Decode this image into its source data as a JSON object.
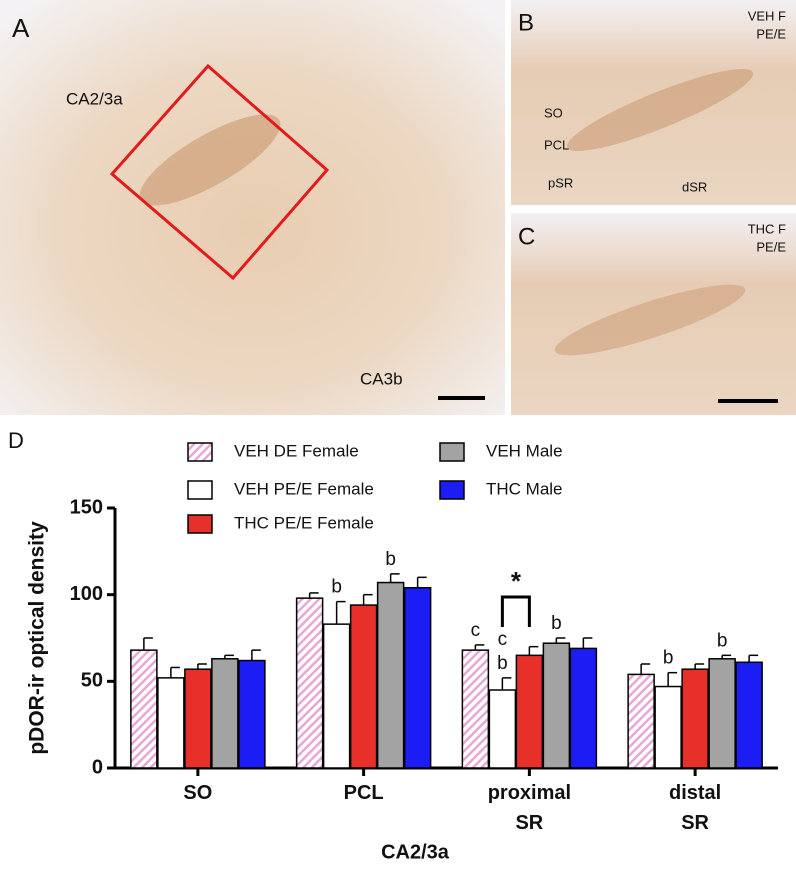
{
  "micrographs": {
    "A": {
      "letter": "A",
      "labels": [
        "CA2/3a",
        "CA3b"
      ]
    },
    "B": {
      "letter": "B",
      "corner": [
        "VEH F",
        "PE/E"
      ],
      "labels": [
        "SO",
        "PCL",
        "pSR",
        "dSR"
      ]
    },
    "C": {
      "letter": "C",
      "corner": [
        "THC F",
        "PE/E"
      ]
    }
  },
  "chart_data": {
    "type": "bar",
    "panel": "D",
    "ylabel": "pDOR-ir optical density",
    "xlabel": "CA2/3a",
    "categories": [
      "SO",
      "PCL",
      "proximal SR",
      "distal SR"
    ],
    "ylim": [
      0,
      150
    ],
    "yticks": [
      0,
      50,
      100,
      150
    ],
    "series": [
      {
        "name": "VEH DE Female",
        "color": "#e6a8d6",
        "hatched": true,
        "values": [
          68,
          98,
          68,
          54
        ],
        "errors": [
          7,
          3,
          3,
          6
        ],
        "annotations": [
          null,
          null,
          [
            "c"
          ],
          null
        ]
      },
      {
        "name": "VEH PE/E Female",
        "color": "#ffffff",
        "values": [
          52,
          83,
          45,
          47
        ],
        "errors": [
          6,
          13,
          7,
          8
        ],
        "annotations": [
          null,
          [
            "b"
          ],
          [
            "c",
            "b"
          ],
          [
            "b"
          ]
        ]
      },
      {
        "name": "THC PE/E Female",
        "color": "#e8302a",
        "values": [
          57,
          94,
          65,
          57
        ],
        "errors": [
          3,
          6,
          5,
          3
        ],
        "annotations": [
          null,
          null,
          null,
          null
        ]
      },
      {
        "name": "VEH Male",
        "color": "#a3a3a3",
        "values": [
          63,
          107,
          72,
          63
        ],
        "errors": [
          2,
          5,
          3,
          2
        ],
        "annotations": [
          null,
          [
            "b"
          ],
          [
            "b"
          ],
          [
            "b"
          ]
        ]
      },
      {
        "name": "THC Male",
        "color": "#1c1cf5",
        "values": [
          62,
          104,
          69,
          61
        ],
        "errors": [
          6,
          6,
          6,
          4
        ],
        "annotations": [
          null,
          null,
          null,
          null
        ]
      }
    ],
    "bracket": {
      "label": "*"
    }
  }
}
